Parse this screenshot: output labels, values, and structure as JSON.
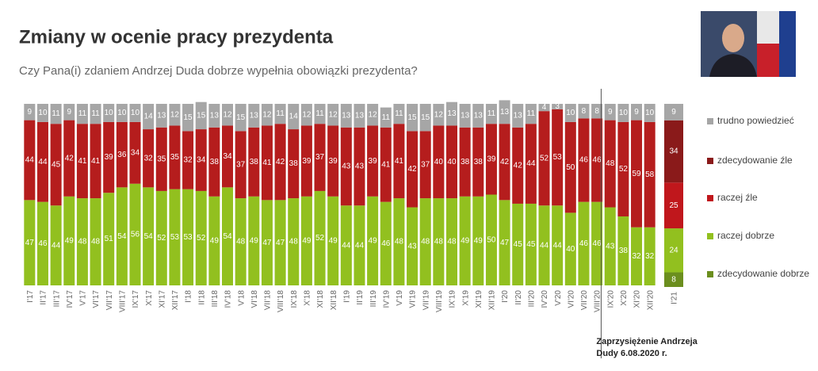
{
  "chart_data": [
    {
      "type": "bar",
      "stacked": true,
      "title": "Zmiany w ocenie pracy prezydenta",
      "subtitle": "Czy Pana(i) zdaniem Andrzej Duda dobrze wypełnia obowiązki prezydenta?",
      "annotation": [
        "Zaprzysiężenie Andrzeja",
        "Dudy 6.08.2020 r."
      ],
      "categories": [
        "I'17",
        "II'17",
        "III'17",
        "IV'17",
        "V'17",
        "VI'17",
        "VII'17",
        "VIII'17",
        "IX'17",
        "X'17",
        "XI'17",
        "XII'17",
        "I'18",
        "II'18",
        "III'18",
        "IV'18",
        "V'18",
        "VI'18",
        "VII'18",
        "VIII'18",
        "IX'18",
        "X'18",
        "XI'18",
        "XII'18",
        "I'19",
        "II'19",
        "III'19",
        "IV'19",
        "V'19",
        "VI'19",
        "VII'19",
        "VIII'19",
        "IX'19",
        "X'19",
        "XI'19",
        "XII'19",
        "I'20",
        "II'20",
        "III'20",
        "IV'20",
        "V'20",
        "VI'20",
        "VII'20",
        "VIII'20",
        "IX'20",
        "X'20",
        "XI'20",
        "XII'20"
      ],
      "series": [
        {
          "color": "#92c01f",
          "values": [
            47,
            46,
            44,
            49,
            48,
            48,
            51,
            54,
            56,
            54,
            52,
            53,
            53,
            52,
            49,
            54,
            48,
            49,
            47,
            47,
            48,
            49,
            52,
            49,
            44,
            44,
            49,
            46,
            48,
            43,
            48,
            48,
            48,
            49,
            49,
            50,
            47,
            45,
            45,
            44,
            44,
            40,
            46,
            46,
            43,
            38,
            32,
            32
          ]
        },
        {
          "color": "#b51d1d",
          "values": [
            44,
            44,
            45,
            42,
            41,
            41,
            39,
            36,
            34,
            32,
            35,
            35,
            32,
            34,
            38,
            34,
            37,
            38,
            41,
            42,
            38,
            39,
            37,
            39,
            43,
            43,
            39,
            41,
            41,
            42,
            37,
            40,
            40,
            38,
            38,
            39,
            42,
            42,
            44,
            52,
            53,
            50,
            46,
            46,
            48,
            52,
            59,
            58
          ]
        },
        {
          "color": "#a6a6a6",
          "values": [
            9,
            10,
            11,
            9,
            11,
            11,
            10,
            10,
            10,
            14,
            13,
            12,
            15,
            15,
            13,
            12,
            15,
            13,
            12,
            11,
            14,
            12,
            11,
            12,
            13,
            13,
            12,
            11,
            11,
            15,
            15,
            12,
            13,
            13,
            13,
            11,
            13,
            13,
            11,
            4,
            3,
            10,
            8,
            8,
            9,
            10,
            9,
            10
          ]
        }
      ],
      "ylim": [
        0,
        100
      ]
    },
    {
      "type": "bar",
      "stacked": true,
      "categories": [
        "I'21"
      ],
      "series": [
        {
          "name": "zdecydowanie dobrze",
          "color": "#6b8e1e",
          "values": [
            8
          ]
        },
        {
          "name": "raczej dobrze",
          "color": "#92c01f",
          "values": [
            24
          ]
        },
        {
          "name": "raczej źle",
          "color": "#c0171c",
          "values": [
            25
          ]
        },
        {
          "name": "zdecydowanie źle",
          "color": "#8a1a1a",
          "values": [
            34
          ]
        },
        {
          "name": "trudno powiedzieć",
          "color": "#a6a6a6",
          "values": [
            9
          ]
        }
      ],
      "ylim": [
        0,
        100
      ]
    }
  ]
}
